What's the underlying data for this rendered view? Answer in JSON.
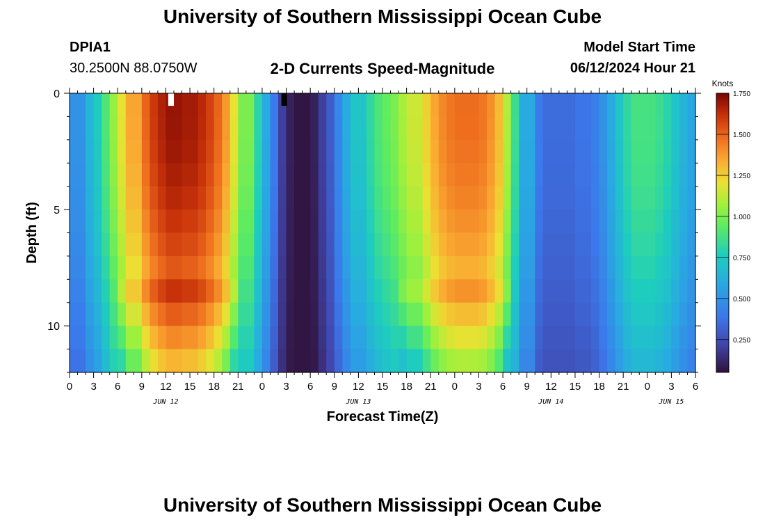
{
  "header": {
    "title": "University of Southern Mississippi Ocean Cube",
    "station_id": "DPIA1",
    "station_coords": "30.2500N  88.0750W",
    "subtitle": "2-D Currents Speed-Magnitude",
    "model_start_label": "Model Start Time",
    "model_start_value": "06/12/2024 Hour 21"
  },
  "footer": {
    "title": "University of Southern Mississippi Ocean Cube"
  },
  "chart_data": {
    "type": "heatmap",
    "title": "2-D Currents Speed-Magnitude",
    "xlabel": "Forecast Time(Z)",
    "ylabel": "Depth (ft)",
    "y_ticks": [
      0,
      5,
      10
    ],
    "y_range": [
      0,
      12
    ],
    "x_tick_labels": [
      "0",
      "3",
      "6",
      "9",
      "12",
      "15",
      "18",
      "21",
      "0",
      "3",
      "6",
      "9",
      "12",
      "15",
      "18",
      "21",
      "0",
      "3",
      "6",
      "9",
      "12",
      "15",
      "18",
      "21",
      "0",
      "3",
      "6"
    ],
    "date_labels": [
      {
        "label": "JUN 12",
        "tick_index": 4
      },
      {
        "label": "JUN 13",
        "tick_index": 12
      },
      {
        "label": "JUN 14",
        "tick_index": 20
      },
      {
        "label": "JUN 15",
        "tick_index": 25
      }
    ],
    "colorbar": {
      "unit": "Knots",
      "min": 0.05,
      "max": 1.75,
      "ticks": [
        0.25,
        0.5,
        0.75,
        1.0,
        1.25,
        1.5,
        1.75
      ],
      "tick_labels": [
        "0.250",
        "0.500",
        "0.750",
        "1.000",
        "1.250",
        "1.500",
        "1.750"
      ]
    },
    "depth_levels": 12,
    "hours_total": 78,
    "surface_speed_knots": [
      0.5,
      0.65,
      0.75,
      0.9,
      1.05,
      1.2,
      1.35,
      1.5,
      1.6,
      1.66,
      1.7,
      1.7,
      1.68,
      1.64,
      1.58,
      1.5,
      1.38,
      1.2,
      1.0,
      0.8,
      0.6,
      0.4,
      0.2,
      0.1,
      0.06,
      0.1,
      0.2,
      0.3,
      0.45,
      0.6,
      0.72,
      0.82,
      0.9,
      0.95,
      1.0,
      1.08,
      1.15,
      1.25,
      1.35,
      1.42,
      1.46,
      1.48,
      1.48,
      1.46,
      1.4,
      1.3,
      1.1,
      0.85,
      0.6,
      0.4,
      0.35,
      0.35,
      0.35,
      0.35,
      0.38,
      0.42,
      0.5,
      0.6,
      0.72,
      0.82,
      0.88,
      0.88,
      0.85,
      0.8,
      0.72,
      0.64,
      0.58
    ]
  }
}
